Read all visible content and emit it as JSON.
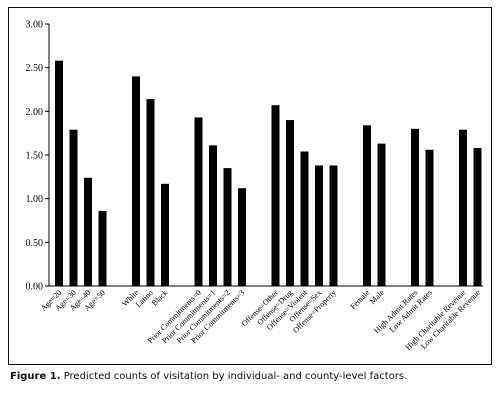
{
  "caption": {
    "label": "Figure 1.",
    "text": "Predicted counts of visitation by individual- and county-level factors."
  },
  "colors": {
    "bar": "#000000",
    "axis": "#000000",
    "frame": "#111111"
  },
  "chart_data": {
    "type": "bar",
    "title": "",
    "xlabel": "",
    "ylabel": "",
    "ylim": [
      0,
      3
    ],
    "yticks": [
      "0.00",
      "0.50",
      "1.00",
      "1.50",
      "2.00",
      "2.50",
      "3.00"
    ],
    "grid": false,
    "legend": "none",
    "groups": [
      {
        "categories": [
          "Age=20",
          "Age=30",
          "Age=40",
          "Age=50"
        ],
        "values": [
          2.58,
          1.79,
          1.24,
          0.86
        ]
      },
      {
        "categories": [
          "White",
          "Latino",
          "Black"
        ],
        "values": [
          2.4,
          2.14,
          1.17
        ]
      },
      {
        "categories": [
          "Prior Commitments=0",
          "Prior Commitments=1",
          "Prior Commitments=2",
          "Prior Commitments=3"
        ],
        "values": [
          1.93,
          1.61,
          1.35,
          1.12
        ]
      },
      {
        "categories": [
          "Offense=Other",
          "Offense=Drug",
          "Offense=Violent",
          "Offense=Sex",
          "Offense=Property"
        ],
        "values": [
          2.07,
          1.9,
          1.54,
          1.38,
          1.38
        ]
      },
      {
        "categories": [
          "Female",
          "Male"
        ],
        "values": [
          1.84,
          1.63
        ]
      },
      {
        "categories": [
          "High Admit Rates",
          "Low Admit Rates"
        ],
        "values": [
          1.8,
          1.56
        ]
      },
      {
        "categories": [
          "High Charitable Revenue",
          "Low Charitable Revenue"
        ],
        "values": [
          1.79,
          1.58
        ]
      }
    ]
  }
}
